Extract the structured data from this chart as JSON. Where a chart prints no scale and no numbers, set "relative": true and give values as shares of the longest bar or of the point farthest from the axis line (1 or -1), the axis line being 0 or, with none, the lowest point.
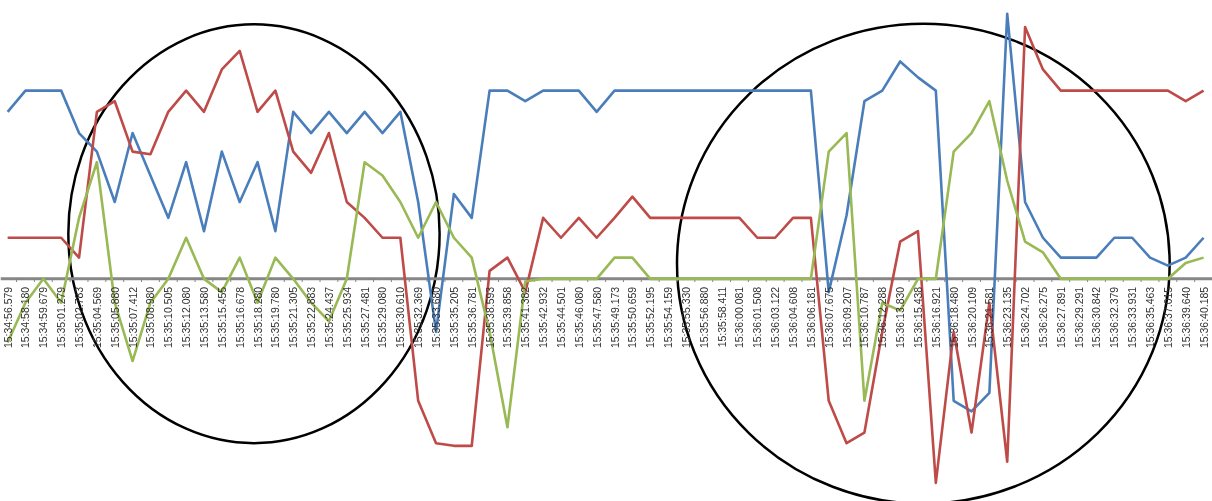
{
  "chart_data": {
    "type": "line",
    "relative": true,
    "grid": false,
    "marker": "none",
    "line_style": "solid",
    "categories": [
      "15:34:56.579",
      "15:34:58.180",
      "15:34:59.679",
      "15:35:01.279",
      "15:35:02.783",
      "15:35:04.569",
      "15:35:05.880",
      "15:35:07.412",
      "15:35:08.980",
      "15:35:10.505",
      "15:35:12.080",
      "15:35:13.580",
      "15:35:15.455",
      "15:35:16.678",
      "15:35:18.280",
      "15:35:19.780",
      "15:35:21.305",
      "15:35:22.883",
      "15:35:24.437",
      "15:35:25.934",
      "15:35:27.481",
      "15:35:29.080",
      "15:35:30.610",
      "15:35:32.369",
      "15:35:33.680",
      "15:35:35.205",
      "15:35:36.781",
      "15:35:38.593",
      "15:35:39.858",
      "15:35:41.382",
      "15:35:42.932",
      "15:35:44.501",
      "15:35:46.080",
      "15:35:47.580",
      "15:35:49.173",
      "15:35:50.659",
      "15:35:52.195",
      "15:35:54.159",
      "15:35:55.330",
      "15:35:56.880",
      "15:35:58.411",
      "15:36:00.081",
      "15:36:01.508",
      "15:36:03.122",
      "15:36:04.608",
      "15:36:06.181",
      "15:36:07.675",
      "15:36:09.207",
      "15:36:10.787",
      "15:36:12.288",
      "15:36:13.830",
      "15:36:15.438",
      "15:36:16.921",
      "15:36:18.480",
      "15:36:20.109",
      "15:36:21.581",
      "15:36:23.135",
      "15:36:24.702",
      "15:36:26.275",
      "15:36:27.891",
      "15:36:29.291",
      "15:36:30.842",
      "15:36:32.379",
      "15:36:33.931",
      "15:36:35.463",
      "15:36:37.015",
      "15:36:39.640",
      "15:36:40.185"
    ],
    "series": [
      {
        "color": "#4a7ebb",
        "values": [
          0.63,
          0.71,
          0.71,
          0.71,
          0.55,
          0.48,
          0.29,
          0.55,
          0.39,
          0.23,
          0.44,
          0.18,
          0.48,
          0.29,
          0.44,
          0.18,
          0.63,
          0.55,
          0.63,
          0.55,
          0.63,
          0.55,
          0.63,
          0.29,
          -0.2,
          0.32,
          0.23,
          0.71,
          0.71,
          0.67,
          0.71,
          0.71,
          0.71,
          0.63,
          0.71,
          0.71,
          0.71,
          0.71,
          0.71,
          0.71,
          0.71,
          0.71,
          0.71,
          0.71,
          0.71,
          0.71,
          -0.05,
          0.24,
          0.67,
          0.71,
          0.82,
          0.76,
          0.71,
          -0.46,
          -0.5,
          -0.43,
          1.0,
          0.29,
          0.155,
          0.08,
          0.08,
          0.08,
          0.155,
          0.155,
          0.08,
          0.05,
          0.08,
          0.155
        ]
      },
      {
        "color": "#be4b48",
        "values": [
          0.155,
          0.155,
          0.155,
          0.155,
          0.08,
          0.63,
          0.67,
          0.48,
          0.47,
          0.63,
          0.71,
          0.63,
          0.79,
          0.86,
          0.63,
          0.71,
          0.48,
          0.4,
          0.55,
          0.29,
          0.23,
          0.155,
          0.155,
          -0.46,
          -0.62,
          -0.63,
          -0.63,
          0.03,
          0.08,
          -0.05,
          0.23,
          0.155,
          0.23,
          0.155,
          0.23,
          0.31,
          0.23,
          0.23,
          0.23,
          0.23,
          0.23,
          0.23,
          0.155,
          0.155,
          0.23,
          0.23,
          -0.46,
          -0.62,
          -0.58,
          -0.2,
          0.14,
          0.18,
          -0.77,
          -0.2,
          -0.58,
          -0.09,
          -0.69,
          0.95,
          0.79,
          0.71,
          0.71,
          0.71,
          0.71,
          0.71,
          0.71,
          0.71,
          0.67,
          0.71
        ]
      },
      {
        "color": "#98b954",
        "values": [
          -0.24,
          -0.09,
          0,
          -0.09,
          0.23,
          0.44,
          -0.09,
          -0.31,
          -0.09,
          0,
          0.155,
          0,
          -0.05,
          0.08,
          -0.09,
          0.08,
          0,
          -0.09,
          -0.16,
          0,
          0.44,
          0.39,
          0.29,
          0.155,
          0.29,
          0.155,
          0.08,
          -0.2,
          -0.56,
          -0.01,
          0,
          0,
          0,
          0,
          0.08,
          0.08,
          0,
          0,
          0,
          0,
          0,
          0,
          0,
          0,
          0,
          0,
          0.48,
          0.55,
          -0.46,
          -0.09,
          -0.12,
          0,
          0,
          0.48,
          0.55,
          0.67,
          0.37,
          0.14,
          0.1,
          0,
          0,
          0,
          0,
          0,
          0,
          0,
          0.06,
          0.08
        ]
      }
    ]
  }
}
